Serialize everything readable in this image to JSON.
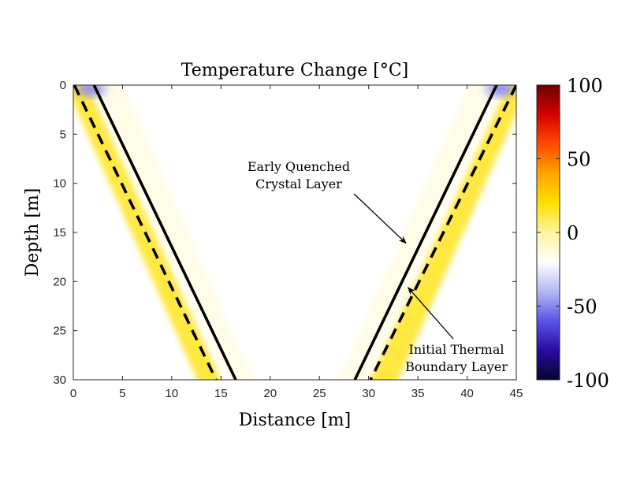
{
  "chart_data": {
    "type": "heatmap",
    "title": "Temperature Change [°C]",
    "xlabel": "Distance [m]",
    "ylabel": "Depth [m]",
    "xlim": [
      0,
      45
    ],
    "ylim": [
      0,
      30
    ],
    "y_reversed": true,
    "x_ticks": [
      0,
      5,
      10,
      15,
      20,
      25,
      30,
      35,
      40,
      45
    ],
    "y_ticks": [
      0,
      5,
      10,
      15,
      20,
      25,
      30
    ],
    "colorbar": {
      "min": -100,
      "max": 100,
      "ticks": [
        100,
        50,
        0,
        -50,
        -100
      ],
      "tick_labels": [
        "100",
        "50",
        "0",
        "-50",
        "-100"
      ],
      "colors_low_to_high": [
        "#05052e",
        "#2a0aa0",
        "#5a55e8",
        "#b4b8f4",
        "#ffffff",
        "#fff59e",
        "#ffe000",
        "#ffa600",
        "#ff4a00",
        "#d60000",
        "#6e0000"
      ]
    },
    "lines": [
      {
        "name": "left solid boundary",
        "style": "solid",
        "x": [
          2.1,
          16.5
        ],
        "y": [
          0,
          30
        ]
      },
      {
        "name": "left dashed boundary",
        "style": "dashed",
        "x": [
          0.1,
          14.5
        ],
        "y": [
          0,
          30
        ]
      },
      {
        "name": "right solid boundary",
        "style": "solid",
        "x": [
          43.0,
          28.6
        ],
        "y": [
          0,
          30
        ]
      },
      {
        "name": "right dashed boundary",
        "style": "dashed",
        "x": [
          45.0,
          30.2
        ],
        "y": [
          0,
          30
        ]
      }
    ],
    "bands": [
      {
        "name": "left cold halo",
        "value": -15,
        "x_top": [
          1.6,
          4.8
        ],
        "x_bottom": [
          16.2,
          18.4
        ]
      },
      {
        "name": "left warm band",
        "value": 12,
        "x_top": [
          -1.0,
          1.2
        ],
        "x_bottom": [
          12.8,
          15.2
        ]
      },
      {
        "name": "right cold halo",
        "value": -15,
        "x_top": [
          40.4,
          43.6
        ],
        "x_bottom": [
          26.8,
          29.2
        ]
      },
      {
        "name": "right warm band",
        "value": 12,
        "x_top": [
          44.4,
          46.5
        ],
        "x_bottom": [
          29.9,
          32.8
        ]
      },
      {
        "name": "left top cold spot",
        "value": -50,
        "x": 1.8,
        "y": 0.4
      },
      {
        "name": "right top cold spot",
        "value": -50,
        "x": 43.4,
        "y": 0.4
      }
    ],
    "annotations": [
      {
        "lines": [
          "Early Quenched",
          "Crystal Layer"
        ],
        "arrow_to": [
          33.8,
          16.1
        ]
      },
      {
        "lines": [
          "Initial Thermal",
          "Boundary Layer"
        ],
        "arrow_to": [
          34.0,
          20.6
        ]
      }
    ]
  }
}
